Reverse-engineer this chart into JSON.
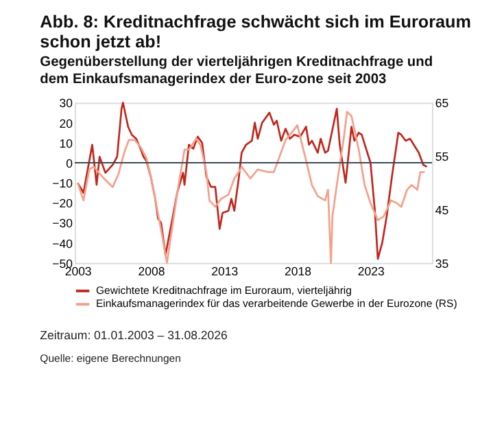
{
  "chart_data": {
    "type": "line",
    "title": "Abb. 8: Kreditnachfrage schwächt sich im Euroraum schon jetzt ab!",
    "subtitle": "Gegenüberstellung der vierteljährigen Kreditnachfrage und dem Einkaufsmanagerindex der Euro-zone seit 2003",
    "series": [
      {
        "name": "Gewichtete Kreditnachfrage im Euroraum, vierteljährig",
        "color": "#c0281e",
        "axis": "y",
        "x": [
          2003.0,
          2003.4,
          2004.0,
          2004.3,
          2004.5,
          2004.9,
          2005.4,
          2005.7,
          2006.0,
          2006.1,
          2006.45,
          2006.7,
          2007.0,
          2007.3,
          2007.5,
          2007.7,
          2008.0,
          2008.3,
          2008.5,
          2008.7,
          2009.0,
          2009.5,
          2009.8,
          2010.2,
          2010.3,
          2010.6,
          2010.9,
          2011.2,
          2011.5,
          2011.8,
          2012.1,
          2012.4,
          2012.7,
          2012.9,
          2013.3,
          2013.5,
          2013.7,
          2014.0,
          2014.2,
          2014.5,
          2014.9,
          2015.1,
          2015.3,
          2015.6,
          2016.1,
          2016.4,
          2016.6,
          2016.9,
          2017.2,
          2017.5,
          2017.8,
          2018.2,
          2018.6,
          2018.8,
          2019.0,
          2019.4,
          2019.6,
          2019.9,
          2020.1,
          2020.7,
          2020.9,
          2021.3,
          2021.7,
          2021.9,
          2022.2,
          2022.4,
          2023.0,
          2023.3,
          2023.5,
          2023.8,
          2024.1,
          2024.5,
          2024.9,
          2025.1,
          2025.4,
          2025.7,
          2026.3,
          2026.6,
          2026.85
        ],
        "values": [
          -10,
          -15,
          9,
          -11,
          3,
          -5,
          -1,
          3,
          27,
          30,
          18,
          14,
          12,
          7,
          3,
          1,
          -7,
          -18,
          -28,
          -30,
          -46,
          -27,
          -15,
          -5,
          -11,
          9,
          7,
          13,
          10,
          -7,
          -12,
          -12,
          -33,
          -25,
          -24,
          -18,
          -24,
          -8,
          5,
          9,
          11,
          20,
          12,
          20,
          25,
          19,
          21,
          11,
          17,
          12,
          14,
          13,
          18,
          9,
          11,
          5,
          12,
          5,
          6,
          27,
          9,
          -10,
          18,
          11,
          15,
          14,
          0,
          -24,
          -48,
          -40,
          -27,
          -5,
          15,
          14,
          11,
          12,
          5,
          -1,
          -2
        ]
      },
      {
        "name": "Einkaufsmanagerindex für das verarbeitende Gewerbe in der Eurozone (RS)",
        "color": "#f5a08c",
        "axis": "y2",
        "x": [
          2003.0,
          2003.4,
          2003.8,
          2004.1,
          2004.8,
          2005.4,
          2005.8,
          2006.2,
          2006.5,
          2006.9,
          2007.3,
          2007.7,
          2008.0,
          2008.3,
          2008.7,
          2009.1,
          2009.4,
          2009.8,
          2010.3,
          2010.6,
          2011.1,
          2011.4,
          2011.8,
          2012.0,
          2012.4,
          2012.8,
          2013.3,
          2013.7,
          2014.0,
          2014.2,
          2014.8,
          2015.3,
          2016.0,
          2016.4,
          2016.8,
          2017.2,
          2017.8,
          2018.0,
          2018.6,
          2019.0,
          2019.4,
          2019.9,
          2020.1,
          2020.3,
          2020.4,
          2020.7,
          2021.2,
          2021.4,
          2021.7,
          2022.2,
          2022.6,
          2023.0,
          2023.5,
          2023.9,
          2024.4,
          2024.8,
          2025.1,
          2025.5,
          2025.8,
          2026.2,
          2026.4,
          2026.7
        ],
        "values": [
          50,
          46.7,
          52.5,
          53,
          50.8,
          49.2,
          51.7,
          55.8,
          58,
          58,
          56.7,
          54.6,
          51.2,
          47,
          41.2,
          35,
          40.5,
          48,
          56.2,
          56.2,
          58.3,
          57,
          52,
          46.7,
          45.5,
          47,
          47.8,
          50.8,
          52,
          53,
          50.8,
          52.5,
          52,
          52,
          55,
          58,
          60,
          60.8,
          54.2,
          49.6,
          47.5,
          46.7,
          48.7,
          35,
          43.7,
          49.6,
          58.8,
          63.3,
          62.5,
          56.2,
          49.6,
          46.2,
          43,
          43.7,
          46.7,
          46.2,
          45.5,
          48.7,
          49.6,
          48.7,
          52,
          52
        ]
      }
    ],
    "xlim": [
      2002.8,
      2027.2
    ],
    "xticks": [
      2003,
      2008,
      2013,
      2018,
      2023
    ],
    "ylim": [
      -50,
      30
    ],
    "yticks": [
      -50,
      -40,
      -30,
      -20,
      -10,
      0,
      10,
      20,
      30
    ],
    "y2lim": [
      35,
      65
    ],
    "y2ticks": [
      35,
      45,
      55,
      65
    ],
    "ref_lines": [
      {
        "axis": "y",
        "value": 0,
        "color": "#3a4a5a"
      }
    ],
    "grid": false,
    "legend": "bottom",
    "marker": "none",
    "line_style": "solid",
    "annotations": [
      "Zeitraum: 01.01.2003 – 31.08.2026",
      "Quelle: eigene Berechnungen"
    ]
  }
}
